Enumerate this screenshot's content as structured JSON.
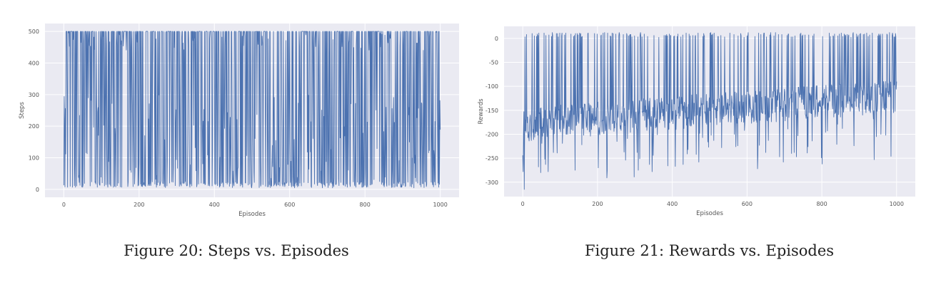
{
  "colors": {
    "series": "#4c72b0",
    "plot_bg": "#eaeaf2",
    "grid": "#ffffff"
  },
  "chart_data": [
    {
      "type": "line",
      "caption_number": "Figure 20:",
      "caption_text": "Steps vs. Episodes",
      "xlabel": "Episodes",
      "ylabel": "Steps",
      "xlim": [
        -50,
        1050
      ],
      "ylim": [
        -25,
        525
      ],
      "xticks": [
        0,
        200,
        400,
        600,
        800,
        1000
      ],
      "yticks": [
        0,
        100,
        200,
        300,
        400,
        500
      ],
      "grid": true,
      "series": [
        {
          "x": [
            0,
            1000
          ],
          "x_step": 1,
          "min": 5,
          "max": 500,
          "pattern": "oscillating"
        }
      ]
    },
    {
      "type": "line",
      "caption_number": "Figure 21:",
      "caption_text": "Rewards vs. Episodes",
      "xlabel": "Episodes",
      "ylabel": "Rewards",
      "xlim": [
        -50,
        1050
      ],
      "ylim": [
        -330,
        25
      ],
      "xticks": [
        0,
        200,
        400,
        600,
        800,
        1000
      ],
      "yticks": [
        0,
        -50,
        -100,
        -150,
        -200,
        -250,
        -300
      ],
      "grid": true,
      "series": [
        {
          "x": [
            0,
            1000
          ],
          "x_step": 1,
          "min": -315,
          "max": 12,
          "pattern": "noisy",
          "trend_start": -180,
          "trend_end": -120
        }
      ]
    }
  ]
}
